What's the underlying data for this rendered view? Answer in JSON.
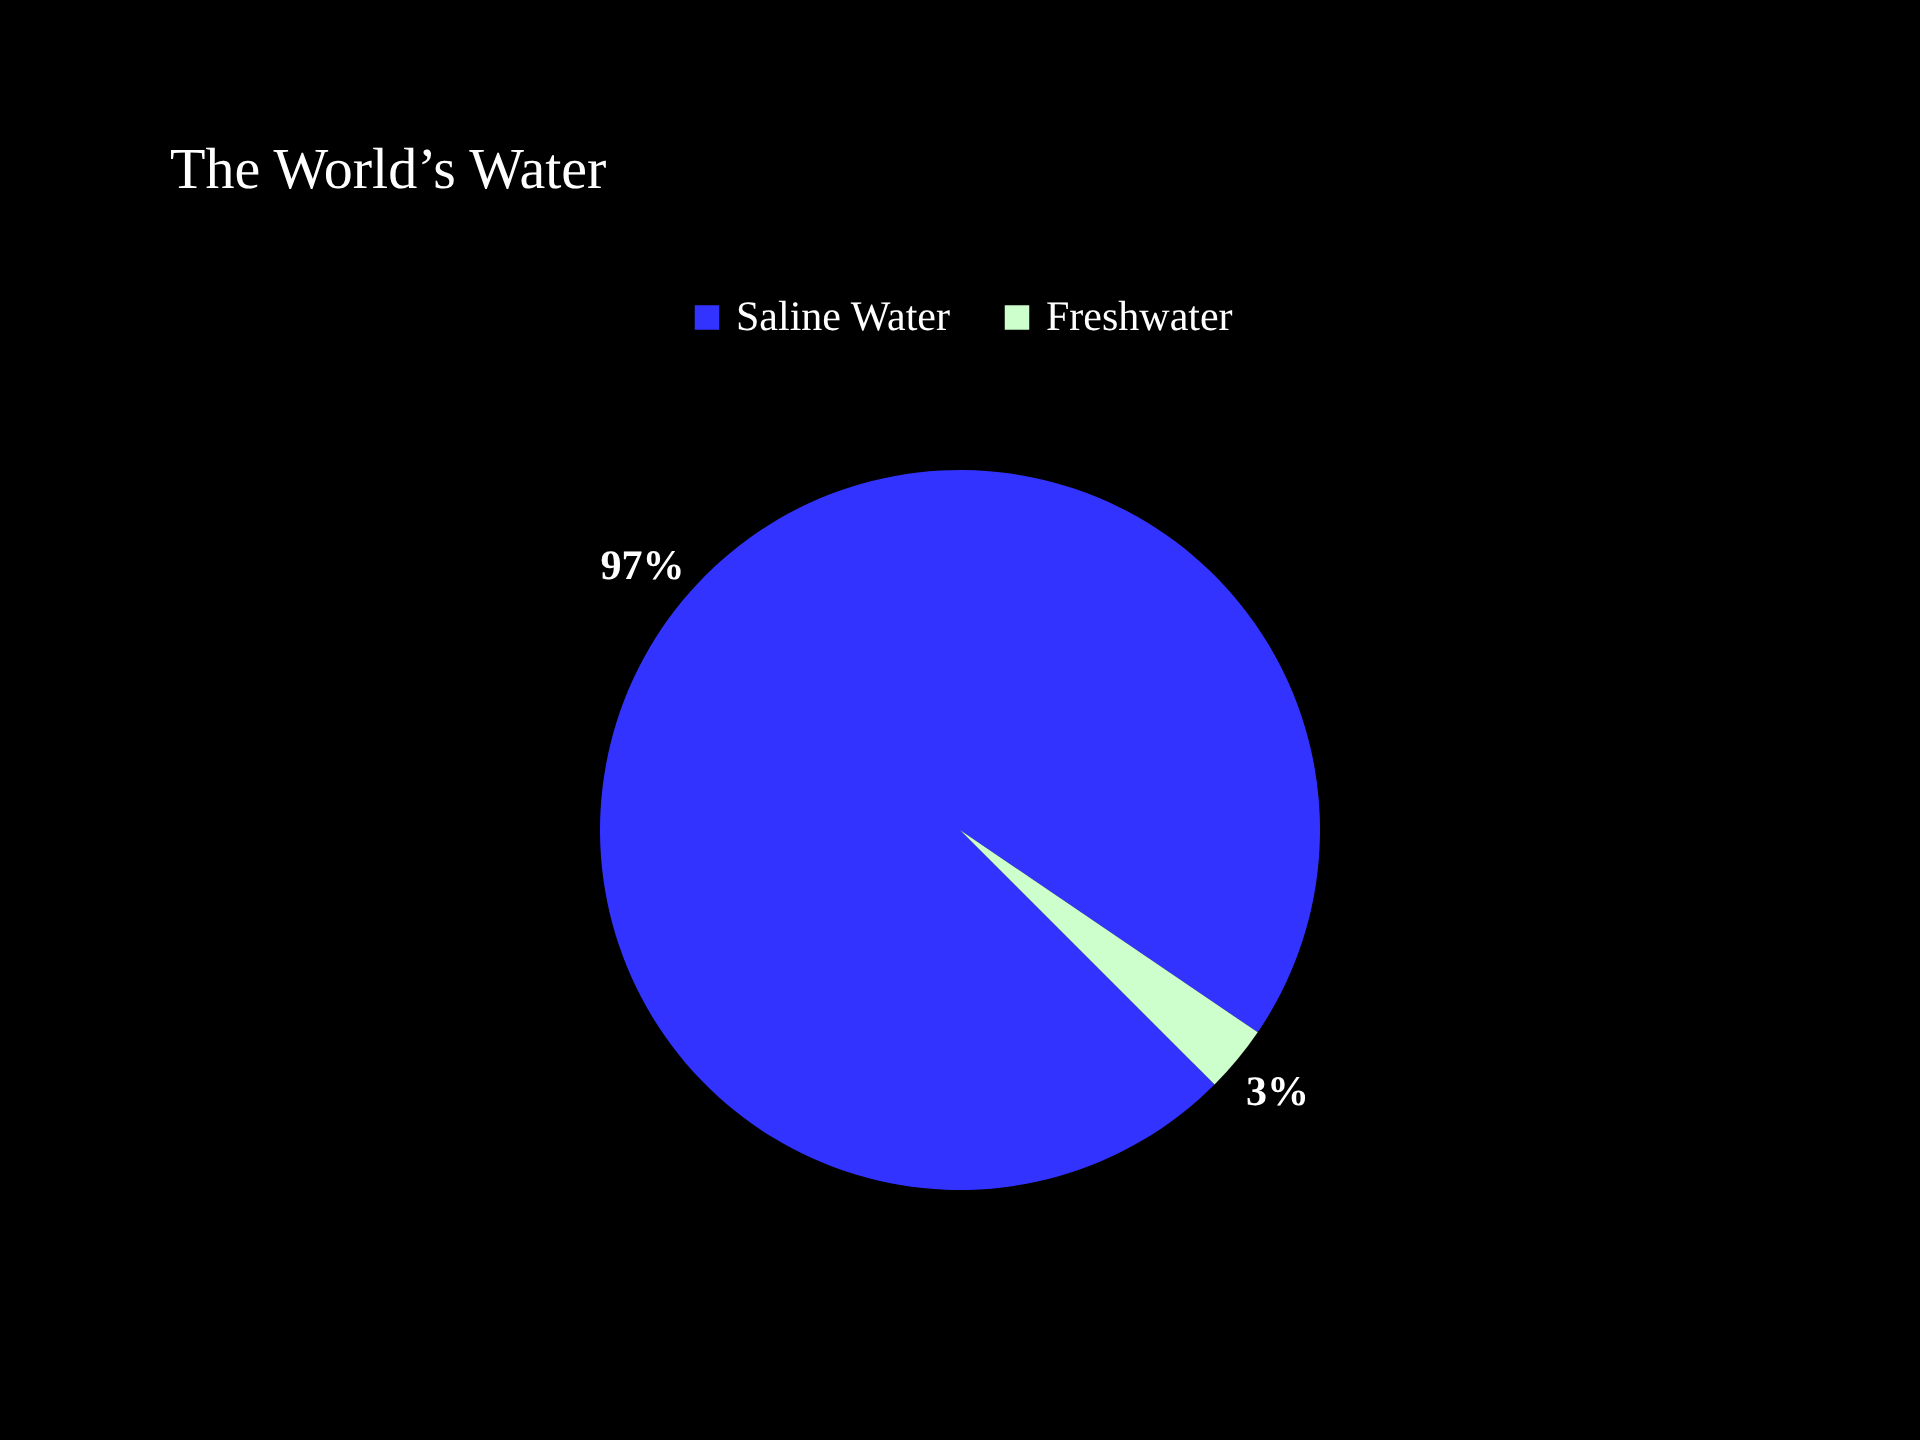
{
  "chart_data": {
    "type": "pie",
    "title": "The World’s Water",
    "categories": [
      "Saline Water",
      "Freshwater"
    ],
    "values": [
      97,
      3
    ],
    "colors": [
      "#3333ff",
      "#ccffcc"
    ],
    "value_labels": [
      "97%",
      "3%"
    ],
    "legend": "top"
  }
}
